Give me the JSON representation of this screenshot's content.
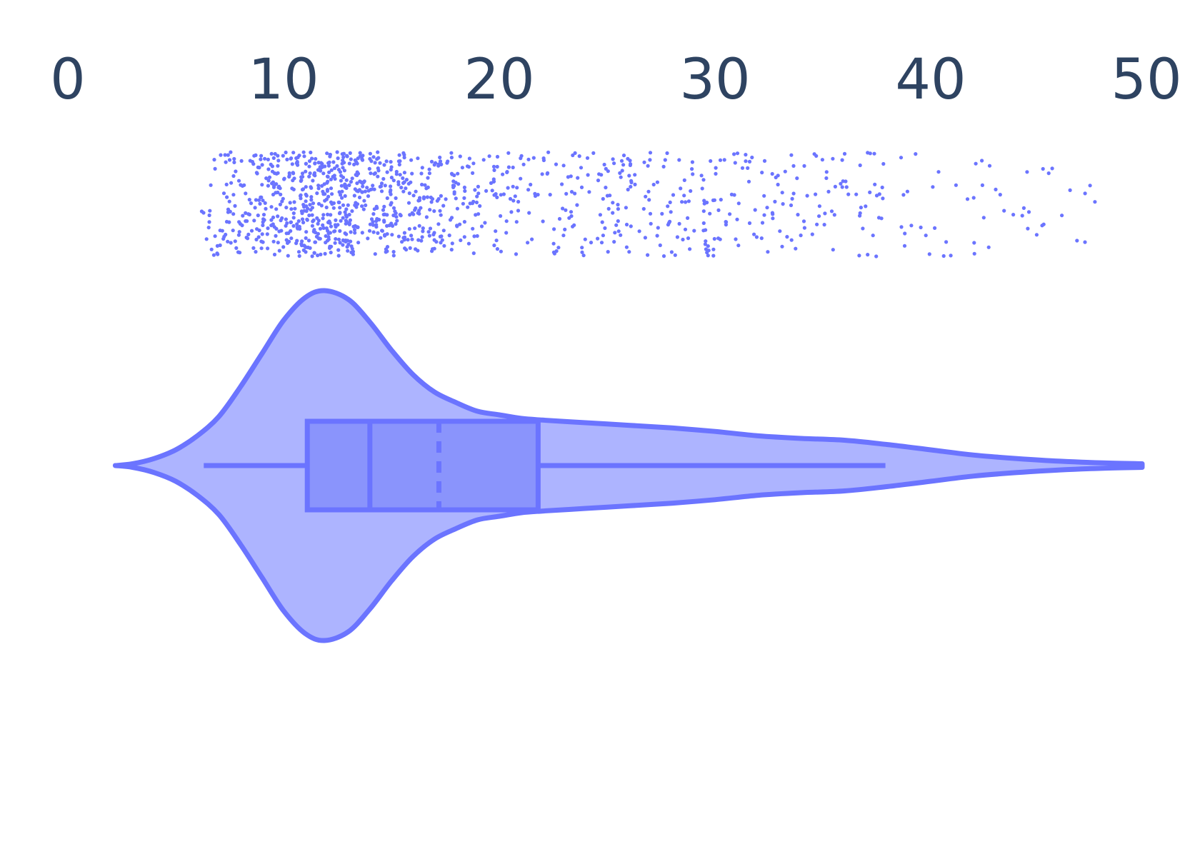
{
  "chart_data": {
    "type": "violin",
    "orientation": "horizontal",
    "xlim": [
      0,
      50
    ],
    "x_ticks": [
      "0",
      "10",
      "20",
      "30",
      "40",
      "50"
    ],
    "x_tick_values": [
      0,
      10,
      20,
      30,
      40,
      50
    ],
    "tick_position": "top",
    "grid": false,
    "color": "#6b74ff",
    "fill_color": "#adb4ff",
    "box_fill_color": "#8a94fc",
    "label_color": "#2e4361",
    "box": {
      "whisker_low": 6.3,
      "q1": 11.1,
      "median": 14.0,
      "mean": 17.2,
      "q3": 21.8,
      "whisker_high": 37.9
    },
    "density": {
      "x": [
        2.2,
        3,
        4,
        5,
        6,
        7,
        8,
        9,
        10,
        11,
        11.9,
        13,
        14,
        15,
        16,
        17,
        18,
        19,
        20,
        21,
        22,
        24,
        26,
        28,
        30,
        32,
        34,
        36,
        38,
        40,
        42,
        44,
        46,
        48,
        49.8
      ],
      "y": [
        0.0,
        0.01,
        0.04,
        0.09,
        0.17,
        0.28,
        0.45,
        0.64,
        0.83,
        0.96,
        1.0,
        0.95,
        0.82,
        0.66,
        0.52,
        0.42,
        0.36,
        0.31,
        0.29,
        0.27,
        0.26,
        0.245,
        0.23,
        0.215,
        0.195,
        0.17,
        0.155,
        0.145,
        0.12,
        0.09,
        0.06,
        0.04,
        0.025,
        0.015,
        0.01
      ]
    },
    "points_summary": {
      "count": 1200,
      "min": 6.2,
      "max": 48.7,
      "dense_range": [
        9.5,
        15.5
      ]
    }
  }
}
